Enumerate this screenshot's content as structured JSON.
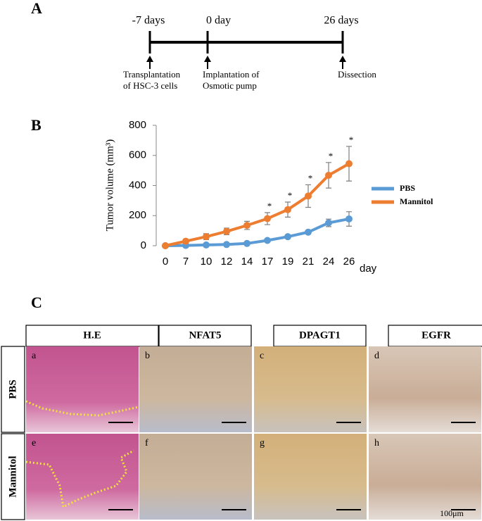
{
  "panel_labels": {
    "a": "A",
    "b": "B",
    "c": "C"
  },
  "timeline": {
    "points": [
      {
        "label": "-7 days",
        "caption": [
          "Transplantation",
          "of HSC-3 cells"
        ]
      },
      {
        "label": "0 day",
        "caption": [
          "Implantation of",
          "Osmotic pump"
        ]
      },
      {
        "label": "26 days",
        "caption": [
          "Dissection"
        ]
      }
    ]
  },
  "chart_data": {
    "type": "line",
    "y_label": "Tumor volume (mm³)",
    "x_label": "day",
    "categories": [
      "0",
      "7",
      "10",
      "12",
      "14",
      "17",
      "19",
      "21",
      "24",
      "26"
    ],
    "ylim": [
      0,
      800
    ],
    "yticks": [
      0,
      200,
      400,
      600,
      800
    ],
    "legend": "right",
    "series": [
      {
        "name": "PBS",
        "color": "#5b9bd5",
        "values": [
          0,
          2,
          5,
          8,
          15,
          35,
          60,
          90,
          152,
          178
        ],
        "errors": [
          2,
          3,
          4,
          5,
          6,
          8,
          10,
          12,
          25,
          48
        ]
      },
      {
        "name": "Mannitol",
        "color": "#ed7d31",
        "values": [
          0,
          30,
          60,
          95,
          135,
          180,
          240,
          330,
          468,
          545
        ],
        "errors": [
          5,
          10,
          20,
          22,
          27,
          40,
          50,
          75,
          85,
          115
        ]
      }
    ],
    "annotations": [
      {
        "text": "*",
        "x": "17"
      },
      {
        "text": "*",
        "x": "19"
      },
      {
        "text": "*",
        "x": "21"
      },
      {
        "text": "*",
        "x": "24"
      },
      {
        "text": "*",
        "x": "26"
      }
    ]
  },
  "micrographs": {
    "columns": [
      "H.E",
      "NFAT5",
      "DPAGT1",
      "EGFR"
    ],
    "rows": [
      "PBS",
      "Mannitol"
    ],
    "panels": [
      [
        "a",
        "b",
        "c",
        "d"
      ],
      [
        "e",
        "f",
        "g",
        "h"
      ]
    ],
    "scale_bar": "100μm"
  }
}
